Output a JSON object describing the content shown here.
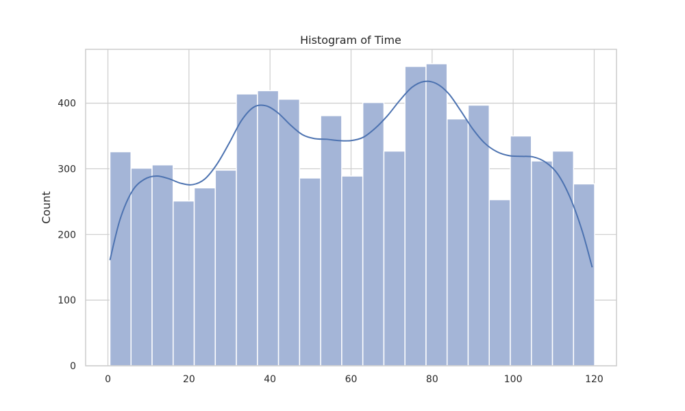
{
  "chart_data": {
    "type": "bar",
    "title": "Histogram of Time",
    "xlabel": "",
    "ylabel": "Count",
    "xlim": [
      -5.5,
      125.5
    ],
    "ylim": [
      0,
      482
    ],
    "xticks": [
      0,
      20,
      40,
      60,
      80,
      100,
      120
    ],
    "yticks": [
      0,
      100,
      200,
      300,
      400
    ],
    "grid": true,
    "bins": {
      "start": 0.5,
      "width": 5.2,
      "values": [
        326,
        301,
        306,
        251,
        271,
        298,
        414,
        419,
        406,
        286,
        381,
        289,
        401,
        327,
        456,
        460,
        376,
        397,
        253,
        350,
        312,
        327,
        277
      ]
    },
    "kde": {
      "x": [
        0.5,
        3,
        6,
        9,
        12,
        15,
        18,
        21,
        24,
        27,
        30,
        33,
        36,
        39,
        42,
        45,
        48,
        51,
        54,
        57,
        60,
        63,
        66,
        69,
        72,
        75,
        78,
        81,
        84,
        87,
        90,
        93,
        96,
        99,
        102,
        105,
        108,
        111,
        114,
        117,
        119.5
      ],
      "y": [
        161,
        223,
        266,
        284,
        289,
        285,
        278,
        276,
        285,
        308,
        340,
        374,
        394,
        396,
        385,
        367,
        352,
        346,
        345,
        343,
        343,
        348,
        362,
        381,
        404,
        424,
        433,
        430,
        415,
        389,
        361,
        339,
        326,
        320,
        319,
        318,
        310,
        292,
        257,
        206,
        150
      ]
    },
    "colors": {
      "bar_fill": "#a4b5d7",
      "bar_edge": "#ffffff",
      "kde_line": "#4c72b0",
      "grid": "#cccccc",
      "frame": "#cccccc"
    }
  }
}
